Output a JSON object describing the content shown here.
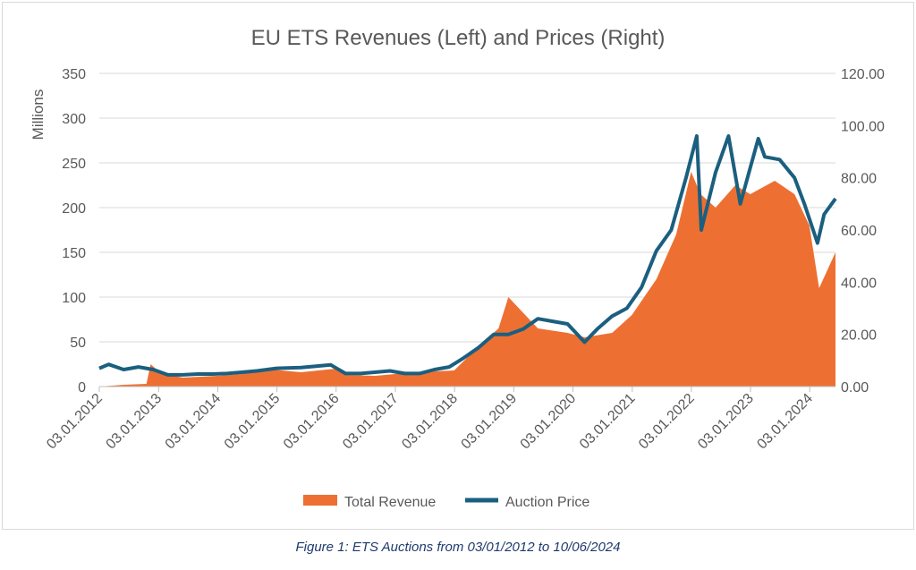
{
  "chart_data": {
    "type": "bar+line",
    "title": "EU ETS Revenues (Left) and Prices (Right)",
    "ylabel": "Millions",
    "ylabel_right": "",
    "ylim": [
      0,
      350
    ],
    "yticks": [
      "0",
      "50",
      "100",
      "150",
      "200",
      "250",
      "300",
      "350"
    ],
    "ylim_right": [
      0,
      120
    ],
    "yticks_right": [
      "0.00",
      "20.00",
      "40.00",
      "60.00",
      "80.00",
      "100.00",
      "120.00"
    ],
    "x_range": [
      "2012-01-03",
      "2024-06-10"
    ],
    "xticks": [
      "03.01.2012",
      "03.01.2013",
      "03.01.2014",
      "03.01.2015",
      "03.01.2016",
      "03.01.2017",
      "03.01.2018",
      "03.01.2019",
      "03.01.2020",
      "03.01.2021",
      "03.01.2022",
      "03.01.2023",
      "03.01.2024"
    ],
    "grid": true,
    "legend_position": "bottom",
    "colors": {
      "revenue": "#ed7032",
      "price": "#1b5f7f"
    },
    "series": [
      {
        "name": "Total Revenue",
        "axis": "left",
        "type": "area",
        "dates": [
          "2012-01-03",
          "2012-06-01",
          "2012-10-20",
          "2012-11-15",
          "2013-01-15",
          "2013-06-01",
          "2014-01-01",
          "2014-06-01",
          "2014-10-01",
          "2015-06-01",
          "2016-01-01",
          "2016-03-01",
          "2016-09-01",
          "2017-03-01",
          "2017-09-01",
          "2018-01-01",
          "2018-06-01",
          "2018-10-01",
          "2018-12-01",
          "2019-06-01",
          "2019-12-01",
          "2020-03-15",
          "2020-09-01",
          "2021-01-01",
          "2021-06-01",
          "2021-10-01",
          "2022-01-01",
          "2022-03-01",
          "2022-06-01",
          "2022-10-01",
          "2023-01-01",
          "2023-06-01",
          "2023-10-01",
          "2024-01-01",
          "2024-03-01",
          "2024-06-10"
        ],
        "values": [
          0,
          2,
          3,
          25,
          15,
          10,
          12,
          14,
          20,
          16,
          20,
          13,
          12,
          15,
          17,
          18,
          45,
          65,
          100,
          65,
          60,
          55,
          60,
          80,
          120,
          170,
          240,
          215,
          200,
          225,
          215,
          230,
          215,
          180,
          110,
          150
        ]
      },
      {
        "name": "Auction Price",
        "axis": "right",
        "type": "line",
        "dates": [
          "2012-01-03",
          "2012-03-01",
          "2012-06-01",
          "2012-09-01",
          "2012-12-01",
          "2013-03-01",
          "2013-06-01",
          "2013-09-01",
          "2013-12-01",
          "2014-03-01",
          "2014-06-01",
          "2014-09-01",
          "2015-01-01",
          "2015-06-01",
          "2015-12-01",
          "2016-03-01",
          "2016-06-01",
          "2016-12-01",
          "2017-03-01",
          "2017-06-01",
          "2017-09-01",
          "2017-12-01",
          "2018-03-01",
          "2018-06-01",
          "2018-09-01",
          "2018-12-01",
          "2019-03-01",
          "2019-06-01",
          "2019-09-01",
          "2019-12-01",
          "2020-03-15",
          "2020-06-01",
          "2020-09-01",
          "2020-12-01",
          "2021-03-01",
          "2021-06-01",
          "2021-09-01",
          "2021-12-01",
          "2022-02-05",
          "2022-03-05",
          "2022-06-01",
          "2022-08-20",
          "2022-11-01",
          "2023-02-20",
          "2023-04-01",
          "2023-07-01",
          "2023-10-01",
          "2023-12-01",
          "2024-02-20",
          "2024-04-01",
          "2024-06-10"
        ],
        "values": [
          7,
          8.5,
          6.5,
          7.5,
          6.5,
          4.5,
          4.5,
          4.8,
          4.8,
          5,
          5.5,
          6,
          7,
          7.3,
          8.3,
          5,
          5,
          6,
          5,
          5,
          6.5,
          7.5,
          11,
          15,
          20,
          20,
          22,
          26,
          25,
          24,
          17,
          22,
          27,
          30,
          38,
          52,
          60,
          80,
          96,
          60,
          82,
          96,
          70,
          95,
          88,
          87,
          80,
          70,
          55,
          66,
          72
        ]
      }
    ]
  },
  "caption": "Figure 1: ETS Auctions from 03/01/2012 to 10/06/2024"
}
